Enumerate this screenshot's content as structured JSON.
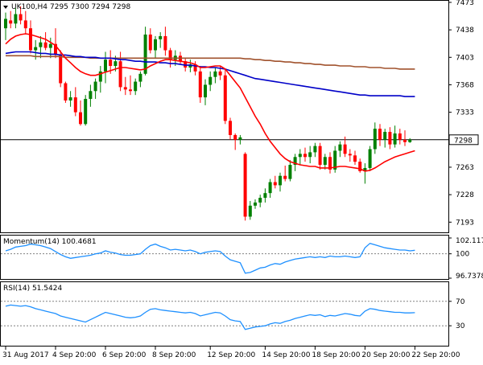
{
  "header": {
    "symbol_label": "UK100,H4",
    "ohlc_label": "7295 7300 7294 7298"
  },
  "chart_data": [
    {
      "type": "candlestick",
      "title": "UK100,H4",
      "ylim": [
        7180,
        7475
      ],
      "y_ticks": [
        7193,
        7228,
        7263,
        7298,
        7333,
        7368,
        7403,
        7438,
        7473
      ],
      "current_price": 7298,
      "colors": {
        "up": "#008000",
        "down": "#ff0000",
        "sma_20": "#ff0000",
        "sma_100": "#0000c8",
        "sma_200": "#a0522d"
      },
      "candles": [
        {
          "o": 7440,
          "h": 7460,
          "l": 7425,
          "c": 7452
        },
        {
          "o": 7450,
          "h": 7462,
          "l": 7440,
          "c": 7446
        },
        {
          "o": 7446,
          "h": 7466,
          "l": 7440,
          "c": 7458
        },
        {
          "o": 7458,
          "h": 7468,
          "l": 7445,
          "c": 7450
        },
        {
          "o": 7450,
          "h": 7462,
          "l": 7432,
          "c": 7440
        },
        {
          "o": 7440,
          "h": 7450,
          "l": 7408,
          "c": 7412
        },
        {
          "o": 7412,
          "h": 7425,
          "l": 7400,
          "c": 7416
        },
        {
          "o": 7416,
          "h": 7430,
          "l": 7402,
          "c": 7422
        },
        {
          "o": 7422,
          "h": 7435,
          "l": 7412,
          "c": 7415
        },
        {
          "o": 7415,
          "h": 7428,
          "l": 7402,
          "c": 7420
        },
        {
          "o": 7420,
          "h": 7440,
          "l": 7402,
          "c": 7406
        },
        {
          "o": 7406,
          "h": 7412,
          "l": 7365,
          "c": 7370
        },
        {
          "o": 7370,
          "h": 7372,
          "l": 7345,
          "c": 7348
        },
        {
          "o": 7348,
          "h": 7360,
          "l": 7340,
          "c": 7352
        },
        {
          "o": 7352,
          "h": 7365,
          "l": 7328,
          "c": 7333
        },
        {
          "o": 7333,
          "h": 7348,
          "l": 7316,
          "c": 7318
        },
        {
          "o": 7318,
          "h": 7355,
          "l": 7316,
          "c": 7350
        },
        {
          "o": 7350,
          "h": 7368,
          "l": 7340,
          "c": 7360
        },
        {
          "o": 7360,
          "h": 7376,
          "l": 7350,
          "c": 7372
        },
        {
          "o": 7372,
          "h": 7392,
          "l": 7358,
          "c": 7385
        },
        {
          "o": 7385,
          "h": 7410,
          "l": 7370,
          "c": 7400
        },
        {
          "o": 7400,
          "h": 7412,
          "l": 7382,
          "c": 7392
        },
        {
          "o": 7392,
          "h": 7405,
          "l": 7385,
          "c": 7398
        },
        {
          "o": 7398,
          "h": 7410,
          "l": 7360,
          "c": 7365
        },
        {
          "o": 7365,
          "h": 7378,
          "l": 7355,
          "c": 7362
        },
        {
          "o": 7362,
          "h": 7380,
          "l": 7355,
          "c": 7360
        },
        {
          "o": 7360,
          "h": 7376,
          "l": 7355,
          "c": 7372
        },
        {
          "o": 7372,
          "h": 7385,
          "l": 7365,
          "c": 7382
        },
        {
          "o": 7382,
          "h": 7442,
          "l": 7380,
          "c": 7432
        },
        {
          "o": 7432,
          "h": 7440,
          "l": 7408,
          "c": 7412
        },
        {
          "o": 7412,
          "h": 7430,
          "l": 7402,
          "c": 7426
        },
        {
          "o": 7426,
          "h": 7435,
          "l": 7415,
          "c": 7430
        },
        {
          "o": 7430,
          "h": 7442,
          "l": 7405,
          "c": 7412
        },
        {
          "o": 7412,
          "h": 7415,
          "l": 7390,
          "c": 7400
        },
        {
          "o": 7400,
          "h": 7412,
          "l": 7392,
          "c": 7405
        },
        {
          "o": 7405,
          "h": 7410,
          "l": 7395,
          "c": 7398
        },
        {
          "o": 7398,
          "h": 7402,
          "l": 7385,
          "c": 7390
        },
        {
          "o": 7390,
          "h": 7400,
          "l": 7384,
          "c": 7394
        },
        {
          "o": 7394,
          "h": 7398,
          "l": 7380,
          "c": 7385
        },
        {
          "o": 7385,
          "h": 7392,
          "l": 7345,
          "c": 7352
        },
        {
          "o": 7352,
          "h": 7375,
          "l": 7342,
          "c": 7368
        },
        {
          "o": 7368,
          "h": 7385,
          "l": 7360,
          "c": 7378
        },
        {
          "o": 7378,
          "h": 7390,
          "l": 7370,
          "c": 7385
        },
        {
          "o": 7385,
          "h": 7392,
          "l": 7374,
          "c": 7380
        },
        {
          "o": 7380,
          "h": 7388,
          "l": 7318,
          "c": 7322
        },
        {
          "o": 7322,
          "h": 7326,
          "l": 7298,
          "c": 7304
        },
        {
          "o": 7304,
          "h": 7306,
          "l": 7285,
          "c": 7298
        },
        {
          "o": 7298,
          "h": 7304,
          "l": 7292,
          "c": 7301
        },
        {
          "o": 7280,
          "h": 7282,
          "l": 7195,
          "c": 7200
        },
        {
          "o": 7200,
          "h": 7220,
          "l": 7196,
          "c": 7214
        },
        {
          "o": 7214,
          "h": 7222,
          "l": 7210,
          "c": 7218
        },
        {
          "o": 7218,
          "h": 7228,
          "l": 7212,
          "c": 7224
        },
        {
          "o": 7224,
          "h": 7236,
          "l": 7218,
          "c": 7230
        },
        {
          "o": 7230,
          "h": 7248,
          "l": 7224,
          "c": 7244
        },
        {
          "o": 7244,
          "h": 7252,
          "l": 7236,
          "c": 7240
        },
        {
          "o": 7240,
          "h": 7256,
          "l": 7232,
          "c": 7252
        },
        {
          "o": 7252,
          "h": 7265,
          "l": 7245,
          "c": 7248
        },
        {
          "o": 7248,
          "h": 7272,
          "l": 7245,
          "c": 7266
        },
        {
          "o": 7266,
          "h": 7280,
          "l": 7258,
          "c": 7276
        },
        {
          "o": 7276,
          "h": 7286,
          "l": 7266,
          "c": 7280
        },
        {
          "o": 7280,
          "h": 7288,
          "l": 7270,
          "c": 7276
        },
        {
          "o": 7276,
          "h": 7290,
          "l": 7268,
          "c": 7282
        },
        {
          "o": 7282,
          "h": 7294,
          "l": 7276,
          "c": 7290
        },
        {
          "o": 7290,
          "h": 7294,
          "l": 7260,
          "c": 7266
        },
        {
          "o": 7266,
          "h": 7280,
          "l": 7260,
          "c": 7276
        },
        {
          "o": 7276,
          "h": 7282,
          "l": 7255,
          "c": 7260
        },
        {
          "o": 7260,
          "h": 7290,
          "l": 7256,
          "c": 7284
        },
        {
          "o": 7284,
          "h": 7296,
          "l": 7276,
          "c": 7292
        },
        {
          "o": 7292,
          "h": 7302,
          "l": 7276,
          "c": 7280
        },
        {
          "o": 7280,
          "h": 7286,
          "l": 7270,
          "c": 7278
        },
        {
          "o": 7278,
          "h": 7284,
          "l": 7266,
          "c": 7270
        },
        {
          "o": 7270,
          "h": 7274,
          "l": 7256,
          "c": 7258
        },
        {
          "o": 7258,
          "h": 7268,
          "l": 7242,
          "c": 7262
        },
        {
          "o": 7262,
          "h": 7290,
          "l": 7258,
          "c": 7286
        },
        {
          "o": 7286,
          "h": 7320,
          "l": 7280,
          "c": 7312
        },
        {
          "o": 7312,
          "h": 7318,
          "l": 7290,
          "c": 7298
        },
        {
          "o": 7298,
          "h": 7312,
          "l": 7288,
          "c": 7308
        },
        {
          "o": 7308,
          "h": 7314,
          "l": 7286,
          "c": 7292
        },
        {
          "o": 7292,
          "h": 7316,
          "l": 7288,
          "c": 7306
        },
        {
          "o": 7306,
          "h": 7312,
          "l": 7292,
          "c": 7298
        },
        {
          "o": 7298,
          "h": 7310,
          "l": 7290,
          "c": 7295
        },
        {
          "o": 7295,
          "h": 7300,
          "l": 7294,
          "c": 7298
        }
      ],
      "sma_20": [
        7420,
        7426,
        7430,
        7432,
        7433,
        7432,
        7430,
        7428,
        7426,
        7422,
        7418,
        7410,
        7402,
        7396,
        7390,
        7385,
        7382,
        7380,
        7380,
        7382,
        7384,
        7386,
        7388,
        7390,
        7390,
        7389,
        7388,
        7387,
        7388,
        7392,
        7395,
        7398,
        7400,
        7400,
        7399,
        7398,
        7397,
        7396,
        7394,
        7390,
        7390,
        7391,
        7392,
        7392,
        7388,
        7380,
        7372,
        7364,
        7352,
        7340,
        7328,
        7318,
        7306,
        7296,
        7288,
        7280,
        7274,
        7270,
        7268,
        7266,
        7265,
        7264,
        7264,
        7262,
        7262,
        7262,
        7263,
        7264,
        7264,
        7263,
        7262,
        7261,
        7258,
        7259,
        7262,
        7266,
        7270,
        7273,
        7276,
        7278,
        7280,
        7282,
        7284
      ],
      "sma_100": [
        7408,
        7409,
        7410,
        7410,
        7410,
        7410,
        7409,
        7408,
        7408,
        7407,
        7407,
        7406,
        7406,
        7405,
        7404,
        7404,
        7403,
        7403,
        7403,
        7402,
        7402,
        7402,
        7401,
        7400,
        7400,
        7399,
        7398,
        7398,
        7397,
        7397,
        7397,
        7396,
        7396,
        7395,
        7395,
        7394,
        7393,
        7393,
        7392,
        7391,
        7391,
        7390,
        7390,
        7389,
        7388,
        7386,
        7384,
        7382,
        7380,
        7378,
        7376,
        7375,
        7374,
        7373,
        7372,
        7371,
        7370,
        7369,
        7368,
        7367,
        7366,
        7365,
        7364,
        7363,
        7362,
        7361,
        7360,
        7359,
        7358,
        7357,
        7356,
        7355,
        7355,
        7354,
        7354,
        7354,
        7354,
        7354,
        7354,
        7354,
        7353,
        7353,
        7353
      ],
      "sma_200": [
        7405,
        7405,
        7405,
        7405,
        7405,
        7405,
        7404,
        7404,
        7404,
        7404,
        7404,
        7404,
        7403,
        7403,
        7403,
        7403,
        7403,
        7402,
        7402,
        7402,
        7402,
        7402,
        7402,
        7402,
        7402,
        7402,
        7402,
        7402,
        7402,
        7402,
        7402,
        7402,
        7402,
        7402,
        7402,
        7402,
        7402,
        7402,
        7402,
        7402,
        7402,
        7402,
        7402,
        7402,
        7402,
        7402,
        7402,
        7402,
        7401,
        7401,
        7400,
        7400,
        7399,
        7399,
        7398,
        7398,
        7397,
        7397,
        7396,
        7396,
        7395,
        7395,
        7394,
        7394,
        7393,
        7393,
        7393,
        7392,
        7392,
        7392,
        7391,
        7391,
        7391,
        7390,
        7390,
        7390,
        7389,
        7389,
        7389,
        7388,
        7388,
        7388,
        7388
      ]
    },
    {
      "type": "line",
      "title": "Momentum(14) 100.4681",
      "label_name": "Momentum(14)",
      "label_value": "100.4681",
      "ylim": [
        96.7378,
        102.1171
      ],
      "y_ticks": [
        96.7378,
        100,
        102.1171
      ],
      "y_tick_labels": [
        "96.7378",
        "100",
        "102.1171"
      ],
      "reference_level": 100,
      "color": "#1e90ff",
      "values": [
        100.4,
        100.6,
        100.9,
        101.0,
        101.1,
        101.3,
        101.2,
        101.1,
        100.9,
        100.7,
        100.3,
        99.9,
        99.6,
        99.4,
        99.5,
        99.6,
        99.7,
        99.8,
        100.0,
        100.1,
        100.4,
        100.2,
        100.1,
        99.9,
        99.8,
        99.8,
        99.9,
        100.0,
        100.6,
        101.1,
        101.3,
        101.0,
        100.8,
        100.5,
        100.6,
        100.5,
        100.4,
        100.5,
        100.3,
        100.0,
        100.2,
        100.3,
        100.4,
        100.3,
        99.7,
        99.2,
        99.0,
        98.8,
        97.4,
        97.5,
        97.8,
        98.1,
        98.2,
        98.5,
        98.7,
        98.6,
        98.9,
        99.1,
        99.3,
        99.4,
        99.5,
        99.6,
        99.5,
        99.6,
        99.5,
        99.7,
        99.6,
        99.6,
        99.7,
        99.6,
        99.5,
        99.6,
        100.8,
        101.4,
        101.2,
        101.0,
        100.8,
        100.7,
        100.6,
        100.5,
        100.5,
        100.4,
        100.47
      ]
    },
    {
      "type": "line",
      "title": "RSI(14) 51.5424",
      "label_name": "RSI(14)",
      "label_value": "51.5424",
      "ylim": [
        0,
        100
      ],
      "y_ticks": [
        70,
        30
      ],
      "y_tick_labels": [
        "70",
        "30"
      ],
      "levels": [
        70,
        30
      ],
      "color": "#1e90ff",
      "values": [
        62,
        64,
        63,
        62,
        63,
        61,
        58,
        56,
        54,
        52,
        50,
        46,
        44,
        42,
        40,
        38,
        36,
        40,
        44,
        48,
        52,
        50,
        48,
        46,
        44,
        43,
        44,
        46,
        52,
        57,
        58,
        56,
        55,
        54,
        53,
        52,
        51,
        52,
        50,
        46,
        48,
        50,
        52,
        51,
        46,
        40,
        38,
        37,
        24,
        26,
        28,
        29,
        30,
        33,
        35,
        34,
        37,
        39,
        42,
        44,
        46,
        48,
        47,
        48,
        45,
        47,
        46,
        48,
        50,
        49,
        47,
        46,
        54,
        58,
        57,
        55,
        54,
        53,
        52,
        52,
        51,
        51,
        51.5
      ]
    }
  ],
  "time_axis": {
    "labels": [
      "31 Aug 2017",
      "4 Sep 20:00",
      "6 Sep 20:00",
      "8 Sep 20:00",
      "12 Sep 20:00",
      "14 Sep 20:00",
      "18 Sep 20:00",
      "20 Sep 20:00",
      "22 Sep 20:00"
    ],
    "label_bar_index": [
      0,
      10,
      20,
      30,
      41,
      52,
      62,
      72,
      82
    ]
  }
}
